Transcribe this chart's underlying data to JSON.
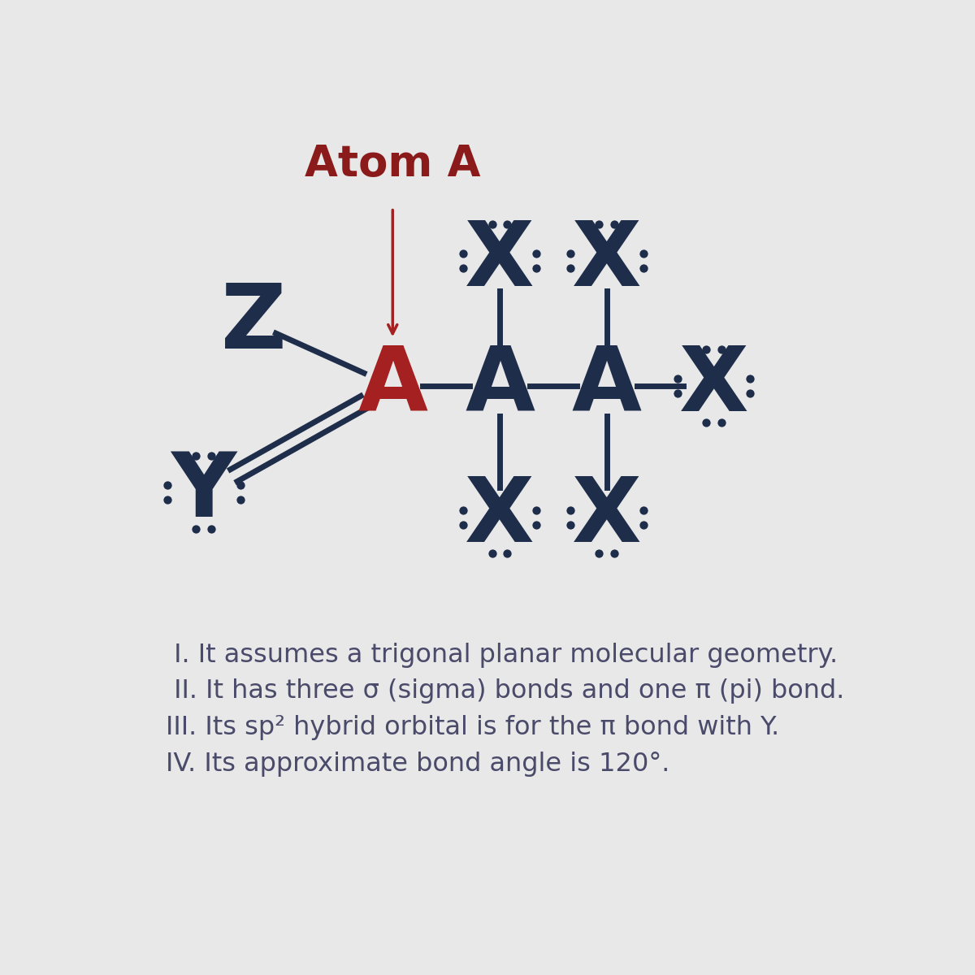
{
  "title": "Atom A",
  "title_color": "#8b1a1a",
  "bg_color": "#e8e8e8",
  "atom_color": "#1e2d4a",
  "atom_red": "#a52020",
  "dot_color": "#1e2d4a",
  "text_color": "#4a4a6a",
  "bond_color": "#1e2d4a",
  "arrow_color": "#a52020",
  "lines": [
    " I. It assumes a trigonal planar molecular geometry.",
    " II. It has three σ (sigma) bonds and one π (pi) bond.",
    "III. Its sp² hybrid orbital is for the π bond with Y.",
    "IV. Its approximate bond angle is 120°."
  ],
  "figsize": [
    12,
    12
  ],
  "dpi": 100
}
